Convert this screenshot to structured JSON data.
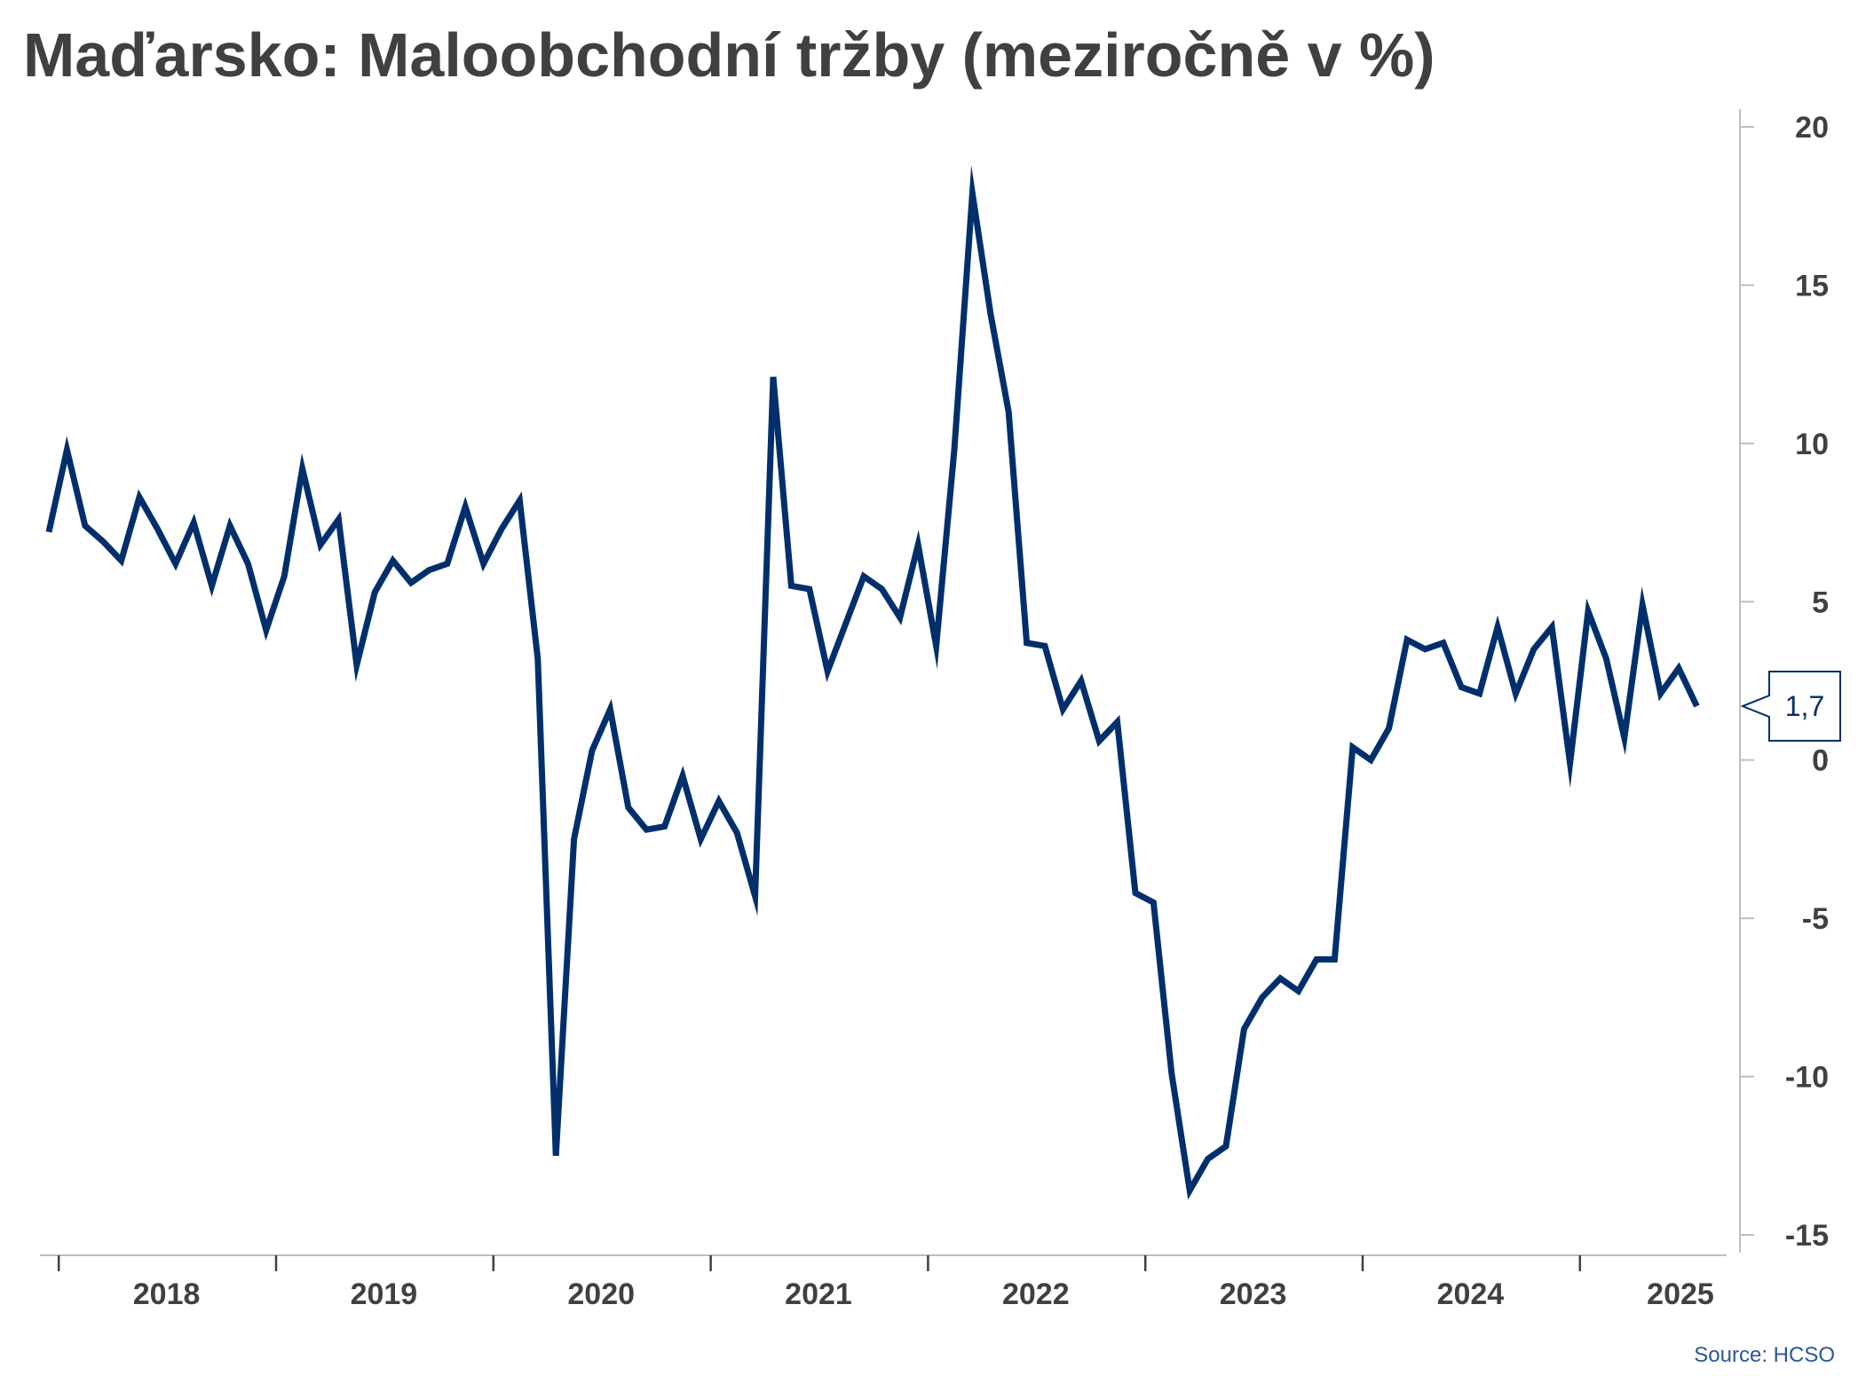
{
  "chart_data": {
    "type": "line",
    "title": "Maďarsko: Maloobchodní tržby (meziročně v %)",
    "xlabel": "",
    "ylabel": "",
    "ylim": [
      -15,
      20
    ],
    "yticks": [
      20,
      15,
      10,
      5,
      0,
      -5,
      -10,
      -15
    ],
    "ytick_labels": [
      "20",
      "15",
      "10",
      "5",
      "0",
      "-5",
      "-10",
      "-15"
    ],
    "y_axis_position": "right",
    "x_start": "2017-12",
    "x_end": "2025-12",
    "year_labels": [
      "2018",
      "2019",
      "2020",
      "2021",
      "2022",
      "2023",
      "2024",
      "2025"
    ],
    "grid": false,
    "legend": "none",
    "series": [
      {
        "color": "#002f6c",
        "points": [
          [
            "2017-12",
            7.2
          ],
          [
            "2018-01",
            9.8
          ],
          [
            "2018-02",
            7.4
          ],
          [
            "2018-03",
            6.9
          ],
          [
            "2018-04",
            6.3
          ],
          [
            "2018-05",
            8.3
          ],
          [
            "2018-06",
            7.3
          ],
          [
            "2018-07",
            6.2
          ],
          [
            "2018-08",
            7.5
          ],
          [
            "2018-09",
            5.5
          ],
          [
            "2018-10",
            7.4
          ],
          [
            "2018-11",
            6.2
          ],
          [
            "2018-12",
            4.1
          ],
          [
            "2019-01",
            5.8
          ],
          [
            "2019-02",
            9.2
          ],
          [
            "2019-03",
            6.8
          ],
          [
            "2019-04",
            7.6
          ],
          [
            "2019-05",
            3.0
          ],
          [
            "2019-06",
            5.3
          ],
          [
            "2019-07",
            6.3
          ],
          [
            "2019-08",
            5.6
          ],
          [
            "2019-09",
            6.0
          ],
          [
            "2019-10",
            6.2
          ],
          [
            "2019-11",
            8.0
          ],
          [
            "2019-12",
            6.2
          ],
          [
            "2020-01",
            7.3
          ],
          [
            "2020-02",
            8.2
          ],
          [
            "2020-03",
            3.2
          ],
          [
            "2020-04",
            -12.5
          ],
          [
            "2020-05",
            -2.5
          ],
          [
            "2020-06",
            0.3
          ],
          [
            "2020-07",
            1.6
          ],
          [
            "2020-08",
            -1.5
          ],
          [
            "2020-09",
            -2.2
          ],
          [
            "2020-10",
            -2.1
          ],
          [
            "2020-11",
            -0.5
          ],
          [
            "2020-12",
            -2.5
          ],
          [
            "2021-01",
            -1.3
          ],
          [
            "2021-02",
            -2.3
          ],
          [
            "2021-03",
            -4.3
          ],
          [
            "2021-04",
            12.1
          ],
          [
            "2021-05",
            5.5
          ],
          [
            "2021-06",
            5.4
          ],
          [
            "2021-07",
            2.8
          ],
          [
            "2021-08",
            4.3
          ],
          [
            "2021-09",
            5.8
          ],
          [
            "2021-10",
            5.4
          ],
          [
            "2021-11",
            4.5
          ],
          [
            "2021-12",
            6.8
          ],
          [
            "2022-01",
            3.6
          ],
          [
            "2022-02",
            9.8
          ],
          [
            "2022-03",
            17.9
          ],
          [
            "2022-04",
            14.1
          ],
          [
            "2022-05",
            11.0
          ],
          [
            "2022-06",
            3.7
          ],
          [
            "2022-07",
            3.6
          ],
          [
            "2022-08",
            1.6
          ],
          [
            "2022-09",
            2.5
          ],
          [
            "2022-10",
            0.6
          ],
          [
            "2022-11",
            1.2
          ],
          [
            "2022-12",
            -4.2
          ],
          [
            "2023-01",
            -4.5
          ],
          [
            "2023-02",
            -9.9
          ],
          [
            "2023-03",
            -13.6
          ],
          [
            "2023-04",
            -12.6
          ],
          [
            "2023-05",
            -12.2
          ],
          [
            "2023-06",
            -8.5
          ],
          [
            "2023-07",
            -7.5
          ],
          [
            "2023-08",
            -6.9
          ],
          [
            "2023-09",
            -7.3
          ],
          [
            "2023-10",
            -6.3
          ],
          [
            "2023-11",
            -6.3
          ],
          [
            "2023-12",
            0.4
          ],
          [
            "2024-01",
            0.0
          ],
          [
            "2024-02",
            1.0
          ],
          [
            "2024-03",
            3.8
          ],
          [
            "2024-04",
            3.5
          ],
          [
            "2024-05",
            3.7
          ],
          [
            "2024-06",
            2.3
          ],
          [
            "2024-07",
            2.1
          ],
          [
            "2024-08",
            4.2
          ],
          [
            "2024-09",
            2.1
          ],
          [
            "2024-10",
            3.5
          ],
          [
            "2024-11",
            4.2
          ],
          [
            "2024-12",
            -0.1
          ],
          [
            "2025-01",
            4.7
          ],
          [
            "2025-02",
            3.2
          ],
          [
            "2025-03",
            0.7
          ],
          [
            "2025-04",
            4.9
          ],
          [
            "2025-05",
            2.1
          ],
          [
            "2025-06",
            2.9
          ],
          [
            "2025-07",
            1.7
          ]
        ]
      }
    ],
    "last_value_label": "1,7",
    "source": "Source: HCSO"
  }
}
